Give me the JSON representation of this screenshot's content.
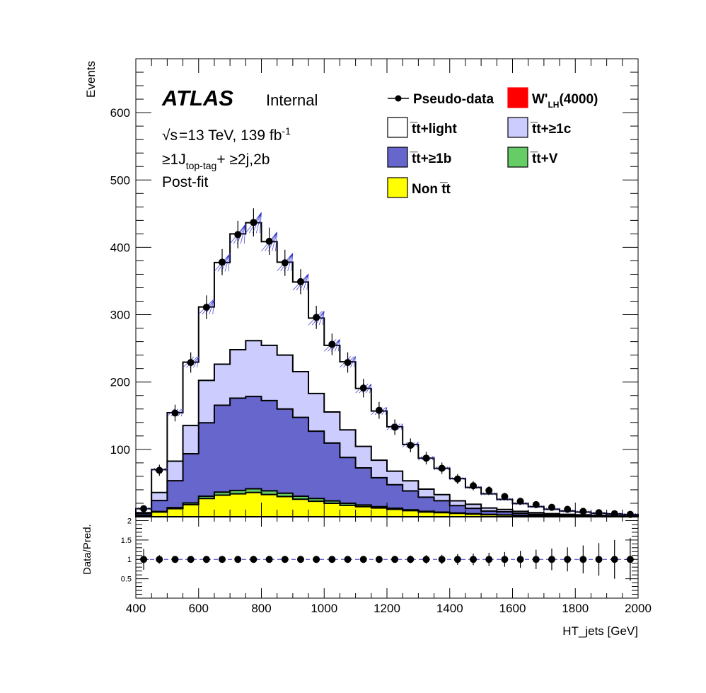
{
  "chart_data": {
    "type": "bar",
    "subtype": "stacked-histogram-with-ratio",
    "x_edges": [
      400,
      450,
      500,
      550,
      600,
      650,
      700,
      750,
      800,
      850,
      900,
      950,
      1000,
      1050,
      1100,
      1150,
      1200,
      1250,
      1300,
      1350,
      1400,
      1450,
      1500,
      1550,
      1600,
      1650,
      1700,
      1750,
      1800,
      1850,
      1900,
      1950,
      2000
    ],
    "xlim": [
      400,
      2000
    ],
    "ylim": [
      0,
      680
    ],
    "ratio_ylim": [
      0,
      2.1
    ],
    "xlabel": "HT_jets [GeV]",
    "ylabel": "Events",
    "ratio_ylabel": "Data/Pred.",
    "x_ticks": [
      400,
      600,
      800,
      1000,
      1200,
      1400,
      1600,
      1800,
      2000
    ],
    "y_ticks": [
      100,
      200,
      300,
      400,
      500,
      600
    ],
    "ratio_ticks": [
      "0.5",
      "1",
      "1.5",
      "2"
    ],
    "ratio_tick_values": [
      0.5,
      1,
      1.5,
      2
    ],
    "series": [
      {
        "name": "Non t̅t",
        "color": "#ffff00",
        "values": [
          2,
          7,
          12,
          18,
          27,
          32,
          34,
          36,
          33,
          30,
          26,
          23,
          20,
          17,
          15,
          13,
          11,
          9,
          7,
          6,
          5,
          4,
          3,
          2.5,
          2,
          1.5,
          1.2,
          1,
          0.8,
          0.6,
          0.5,
          0.4
        ]
      },
      {
        "name": "t̅t+V",
        "color": "#66cc66",
        "values": [
          0.3,
          0.8,
          1.5,
          2.5,
          3.5,
          4.5,
          5,
          5.5,
          5.5,
          5,
          4.5,
          4,
          3.5,
          3,
          2.5,
          2,
          1.6,
          1.3,
          1,
          0.8,
          0.6,
          0.5,
          0.4,
          0.3,
          0.25,
          0.2,
          0.15,
          0.1,
          0.1,
          0.08,
          0.06,
          0.05
        ]
      },
      {
        "name": "t̅t+≥1b",
        "color": "#6666cc",
        "values": [
          2.7,
          16.2,
          40,
          73,
          109,
          129,
          137,
          137,
          134,
          125,
          117,
          100,
          86,
          68,
          55,
          43,
          35,
          28,
          21,
          17,
          11,
          8,
          5,
          4.5,
          3,
          2,
          1.5,
          1,
          0.8,
          0.6,
          0.4,
          0.3
        ]
      },
      {
        "name": "t̅t+≥1c",
        "color": "#ccccff",
        "values": [
          1,
          12,
          29,
          42,
          63,
          61,
          72,
          83,
          82,
          80,
          68,
          56,
          46,
          41,
          32,
          26,
          20,
          15,
          12,
          9,
          7,
          6,
          4.6,
          3.5,
          2.8,
          2.3,
          1.8,
          1.5,
          1.2,
          1,
          0.8,
          0.6
        ]
      },
      {
        "name": "t̅t+light",
        "color": "#ffffff",
        "values": [
          6,
          34,
          72,
          94,
          109,
          151,
          172,
          175,
          154,
          138,
          133,
          112,
          99,
          101,
          86,
          73,
          66,
          54,
          46,
          39,
          33,
          25,
          21,
          15,
          11.5,
          9,
          6.5,
          5,
          4,
          3,
          2.5,
          2
        ]
      }
    ],
    "pseudo_data": [
      12,
      69,
      154,
      229,
      311,
      378,
      419,
      437,
      409,
      377,
      349,
      296,
      256,
      229,
      191,
      158,
      133,
      106,
      87,
      72,
      56,
      46,
      39,
      30,
      23,
      18,
      14,
      11,
      8,
      6,
      4.5,
      3.5
    ],
    "ratio_values": [
      1,
      1,
      1,
      1,
      1,
      1,
      1,
      1,
      1,
      1,
      1,
      1,
      1,
      1,
      1,
      1,
      1,
      1,
      1,
      1,
      1,
      1,
      1,
      1,
      1,
      1,
      1,
      1,
      1,
      1,
      1,
      1
    ],
    "ratio_errors": [
      0.27,
      0.11,
      0.08,
      0.07,
      0.06,
      0.05,
      0.05,
      0.05,
      0.05,
      0.05,
      0.05,
      0.06,
      0.06,
      0.07,
      0.07,
      0.08,
      0.09,
      0.1,
      0.11,
      0.12,
      0.14,
      0.15,
      0.17,
      0.19,
      0.22,
      0.25,
      0.28,
      0.31,
      0.36,
      0.42,
      0.5,
      0.55
    ],
    "legend_position": "top-right",
    "grid": false
  },
  "labels": {
    "experiment": "ATLAS",
    "status": "Internal",
    "energy": "=13 TeV, 139 fb",
    "energy_sup": "-1",
    "sqrt_sym": "√",
    "s_sym": "s",
    "region_main": "≥1J",
    "region_sub": "top-tag",
    "region_rest": "+ ≥2j,2b",
    "fit": "Post-fit"
  },
  "legend": {
    "pseudo": "Pseudo-data",
    "signal": "W'",
    "signal_sub": "LH",
    "signal_mass": "(4000)",
    "signal_color": "#ff0000",
    "light": "t̅t+light",
    "ge1c": "t̅t+≥1c",
    "ge1b": "t̅t+≥1b",
    "ttv": "t̅t+V",
    "nontt": "Non t̅t"
  }
}
